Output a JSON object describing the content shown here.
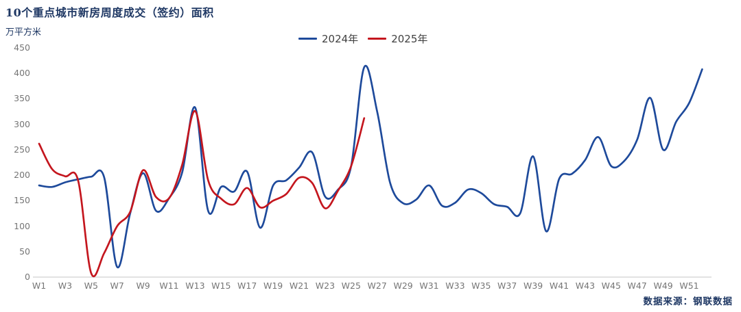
{
  "header": {
    "title": "10个重点城市新房周度成交（签约）面积",
    "unit": "万平方米"
  },
  "legend": {
    "items": [
      {
        "label": "2024年",
        "color": "#1e4a9b"
      },
      {
        "label": "2025年",
        "color": "#c4161e"
      }
    ]
  },
  "footer": {
    "source": "数据来源：钢联数据"
  },
  "chart_data": {
    "type": "line",
    "title": "10个重点城市新房周度成交（签约）面积",
    "ylabel": "万平方米",
    "ylim": [
      0,
      450
    ],
    "y_ticks": [
      0,
      50,
      100,
      150,
      200,
      250,
      300,
      350,
      400,
      450
    ],
    "x_tick_labels": [
      "W1",
      "W3",
      "W5",
      "W7",
      "W9",
      "W11",
      "W13",
      "W15",
      "W17",
      "W19",
      "W21",
      "W23",
      "W25",
      "W27",
      "W29",
      "W31",
      "W33",
      "W35",
      "W37",
      "W39",
      "W41",
      "W43",
      "W45",
      "W47",
      "W49",
      "W51"
    ],
    "grid": false,
    "legend_position": "top-center",
    "axis_color": "#757575",
    "baseline_color": "#d9d9d9",
    "series": [
      {
        "name": "2024年",
        "color": "#1e4a9b",
        "start_week": 1,
        "values": [
          180,
          177,
          186,
          192,
          197,
          196,
          20,
          125,
          204,
          130,
          155,
          205,
          333,
          130,
          177,
          168,
          207,
          97,
          180,
          190,
          215,
          245,
          158,
          172,
          218,
          412,
          325,
          185,
          145,
          152,
          180,
          140,
          146,
          172,
          165,
          143,
          138,
          125,
          237,
          90,
          193,
          203,
          230,
          275,
          218,
          228,
          270,
          352,
          250,
          305,
          342,
          408
        ]
      },
      {
        "name": "2025年",
        "color": "#c4161e",
        "start_week": 1,
        "values": [
          262,
          212,
          198,
          190,
          8,
          47,
          100,
          128,
          210,
          157,
          155,
          220,
          326,
          190,
          154,
          143,
          175,
          137,
          150,
          163,
          195,
          185,
          135,
          170,
          218,
          312
        ]
      }
    ]
  }
}
